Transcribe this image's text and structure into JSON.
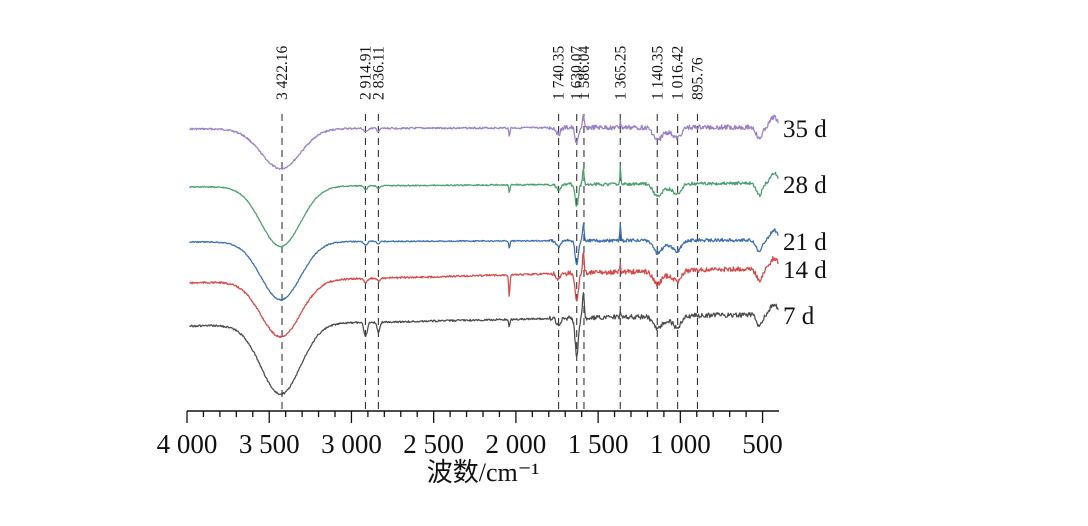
{
  "chart_data": {
    "type": "line",
    "title": "",
    "xlabel": "波数/cm⁻¹",
    "ylabel": "",
    "xlim": [
      4000,
      400
    ],
    "x_reversed": true,
    "x_ticks": [
      4000,
      3500,
      3000,
      2500,
      2000,
      1500,
      1000,
      500
    ],
    "x_tick_labels": [
      "4 000",
      "3 500",
      "3 000",
      "2 500",
      "2 000",
      "1 500",
      "1 000",
      "500"
    ],
    "grid": false,
    "legend": "series labels at right end of each curve",
    "reference_peaks": [
      {
        "value": 3422.16,
        "label": "3 422.16"
      },
      {
        "value": 2914.91,
        "label": "2 914.91"
      },
      {
        "value": 2836.11,
        "label": "2 836.11"
      },
      {
        "value": 1740.35,
        "label": "1 740.35"
      },
      {
        "value": 1630.07,
        "label": "1 630.07"
      },
      {
        "value": 1586.04,
        "label": "1 586.04"
      },
      {
        "value": 1365.25,
        "label": "1 365.25"
      },
      {
        "value": 1140.35,
        "label": "1 140.35"
      },
      {
        "value": 1016.42,
        "label": "1 016.42"
      },
      {
        "value": 895.76,
        "label": "895.76"
      }
    ],
    "series": [
      {
        "name": "35 d",
        "color": "#9a80c8",
        "baseline": 0.0,
        "amplitude": 0.35
      },
      {
        "name": "28 d",
        "color": "#4aa06c",
        "baseline": 0.0,
        "amplitude": 0.8
      },
      {
        "name": "21 d",
        "color": "#3a6fb0",
        "baseline": 0.0,
        "amplitude": 0.8
      },
      {
        "name": "14 d",
        "color": "#d84848",
        "baseline": 0.0,
        "amplitude": 0.8
      },
      {
        "name": "7 d",
        "color": "#4a4a4a",
        "baseline": 0.0,
        "amplitude": 0.95
      }
    ]
  }
}
